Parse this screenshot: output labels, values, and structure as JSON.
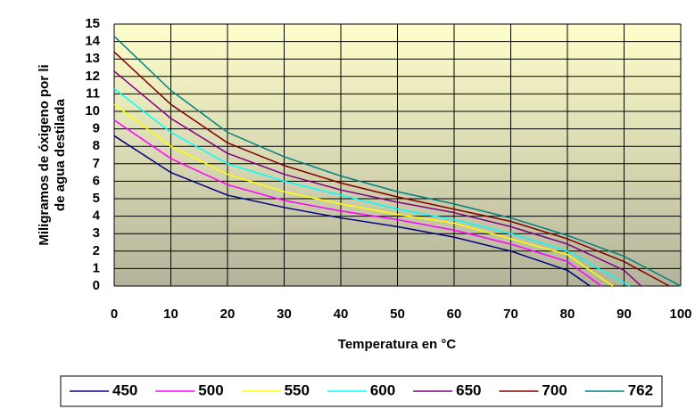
{
  "chart_data": {
    "type": "line",
    "ylabel": [
      "Miligramos de óxigeno por li",
      "de agua destilada"
    ],
    "xlabel": "Temperatura en °C",
    "xlim": [
      0,
      100
    ],
    "xticks": [
      0,
      10,
      20,
      30,
      40,
      50,
      60,
      70,
      80,
      90,
      100
    ],
    "ylim": [
      0,
      15
    ],
    "yticks": [
      0,
      1,
      2,
      3,
      4,
      5,
      6,
      7,
      8,
      9,
      10,
      11,
      12,
      13,
      14,
      15
    ],
    "grid": true,
    "legend": "bottom",
    "series": [
      {
        "name": "450",
        "color": "#000080",
        "x": [
          0,
          10,
          20,
          30,
          40,
          50,
          60,
          70,
          80,
          84
        ],
        "values": [
          8.6,
          6.5,
          5.2,
          4.5,
          3.9,
          3.4,
          2.8,
          2.0,
          0.9,
          0
        ]
      },
      {
        "name": "500",
        "color": "#ff00ff",
        "x": [
          0,
          10,
          20,
          30,
          40,
          50,
          60,
          70,
          80,
          86
        ],
        "values": [
          9.5,
          7.3,
          5.8,
          4.9,
          4.3,
          3.8,
          3.2,
          2.4,
          1.4,
          0
        ]
      },
      {
        "name": "550",
        "color": "#ffff00",
        "x": [
          0,
          10,
          20,
          30,
          40,
          50,
          60,
          70,
          80,
          88
        ],
        "values": [
          10.4,
          8.0,
          6.4,
          5.4,
          4.7,
          4.1,
          3.6,
          2.7,
          1.8,
          0
        ]
      },
      {
        "name": "600",
        "color": "#00ffff",
        "x": [
          0,
          10,
          20,
          30,
          40,
          50,
          60,
          70,
          80,
          91
        ],
        "values": [
          11.3,
          8.8,
          7.0,
          6.0,
          5.2,
          4.4,
          3.8,
          3.0,
          2.0,
          0
        ]
      },
      {
        "name": "650",
        "color": "#800080",
        "x": [
          0,
          10,
          20,
          30,
          40,
          50,
          60,
          70,
          80,
          90,
          93
        ],
        "values": [
          12.3,
          9.6,
          7.6,
          6.4,
          5.5,
          4.8,
          4.2,
          3.4,
          2.4,
          0.9,
          0
        ]
      },
      {
        "name": "700",
        "color": "#800000",
        "x": [
          0,
          10,
          20,
          30,
          40,
          50,
          60,
          70,
          80,
          90,
          98
        ],
        "values": [
          13.4,
          10.4,
          8.2,
          6.9,
          5.9,
          5.1,
          4.4,
          3.7,
          2.7,
          1.4,
          0
        ]
      },
      {
        "name": "762",
        "color": "#008080",
        "x": [
          0,
          10,
          20,
          30,
          40,
          50,
          60,
          70,
          80,
          90,
          100
        ],
        "values": [
          14.3,
          11.2,
          8.8,
          7.4,
          6.3,
          5.4,
          4.7,
          3.9,
          2.9,
          1.7,
          0
        ]
      }
    ]
  }
}
